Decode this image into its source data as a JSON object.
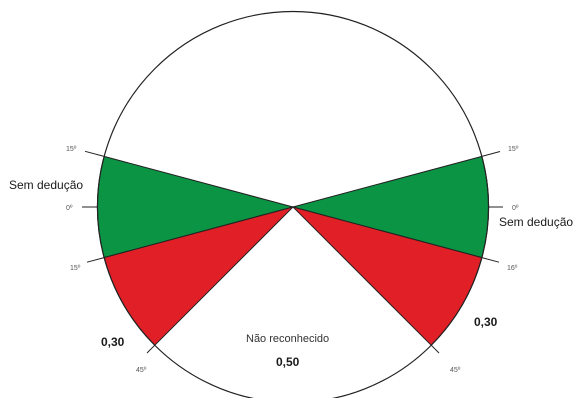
{
  "colors": {
    "green_zone": "#0a9444",
    "red_zone": "#e01f26",
    "outline": "#222222"
  },
  "angles": {
    "left_15_top": "15º",
    "left_0": "0º",
    "left_15_bottom": "15º",
    "left_45": "45º",
    "right_15_top": "15º",
    "right_0": "0º",
    "right_16": "16º",
    "right_45": "45º"
  },
  "zones": {
    "left_green_label": "Sem dedução",
    "right_green_label": "Sem dedução",
    "left_red_value": "0,30",
    "right_red_value": "0,30",
    "bottom_label": "Não reconhecido",
    "bottom_value": "0,50"
  }
}
